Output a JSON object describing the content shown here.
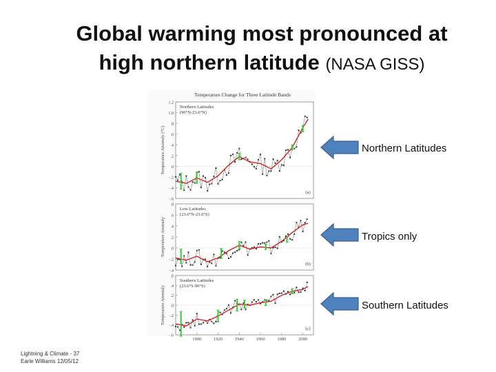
{
  "title": {
    "line1": "Global warming most pronounced at",
    "line2_main": "high northern latitude",
    "line2_source": "(NASA GISS)"
  },
  "footer": {
    "line1": "Lightning & Climate - 37",
    "line2": "Earle Williams 12/05/12"
  },
  "arrows": [
    {
      "label": "Northern Latitudes",
      "color": "#4f81bd"
    },
    {
      "label": "Tropics only",
      "color": "#4f81bd"
    },
    {
      "label": "Southern Latitudes",
      "color": "#4f81bd"
    }
  ],
  "chart_data": {
    "type": "line",
    "title": "Temperature Change for Three Latitude Bands",
    "x_ticks": [
      "1900",
      "1920",
      "1940",
      "1960",
      "1980",
      "2000"
    ],
    "xlim": [
      1880,
      2010
    ],
    "colors": {
      "annual": "#333333",
      "smooth": "#d62020",
      "error_bar": "#33cc33"
    },
    "panels": [
      {
        "name": "Northern Latitudes",
        "subtitle": "(90°N-23.6°N)",
        "ylabel": "Temperature Anomaly (°C)",
        "panel_label": "(a)",
        "ylim": [
          -0.6,
          1.2
        ],
        "y_ticks": [
          "1.2",
          "1.0",
          ".8",
          ".6",
          ".4",
          ".2",
          ".0",
          "-.2",
          "-.4",
          "-.6"
        ],
        "y_tick_values": [
          1.2,
          1.0,
          0.8,
          0.6,
          0.4,
          0.2,
          0.0,
          -0.2,
          -0.4,
          -0.6
        ],
        "smooth": {
          "x": [
            1880,
            1890,
            1900,
            1910,
            1920,
            1930,
            1940,
            1950,
            1960,
            1970,
            1980,
            1990,
            2000,
            2005
          ],
          "y": [
            -0.28,
            -0.32,
            -0.22,
            -0.3,
            -0.18,
            0.02,
            0.18,
            0.08,
            0.05,
            -0.05,
            0.12,
            0.35,
            0.72,
            0.88
          ]
        },
        "annual_amplitude": 0.18,
        "error_bars": [
          {
            "x": 1885,
            "y": -0.28,
            "half": 0.15
          },
          {
            "x": 1900,
            "y": -0.22,
            "half": 0.1
          },
          {
            "x": 1940,
            "y": 0.18,
            "half": 0.06
          },
          {
            "x": 1990,
            "y": 0.35,
            "half": 0.05
          },
          {
            "x": 2000,
            "y": 0.7,
            "half": 0.06
          }
        ]
      },
      {
        "name": "Low Latitudes",
        "subtitle": "(23.6°N-23.6°S)",
        "ylabel": "Temperature Anomaly",
        "panel_label": "(b)",
        "ylim": [
          -0.4,
          0.8
        ],
        "y_ticks": [
          ".8",
          ".6",
          ".4",
          ".2",
          ".0",
          "-.2",
          "-.4"
        ],
        "y_tick_values": [
          0.8,
          0.6,
          0.4,
          0.2,
          0.0,
          -0.2,
          -0.4
        ],
        "smooth": {
          "x": [
            1880,
            1890,
            1900,
            1910,
            1920,
            1930,
            1940,
            1950,
            1960,
            1970,
            1980,
            1990,
            2000,
            2005
          ],
          "y": [
            -0.18,
            -0.22,
            -0.15,
            -0.25,
            -0.18,
            -0.05,
            0.05,
            -0.02,
            0.02,
            0.0,
            0.12,
            0.28,
            0.42,
            0.45
          ]
        },
        "annual_amplitude": 0.14,
        "error_bars": [
          {
            "x": 1885,
            "y": -0.15,
            "half": 0.13
          },
          {
            "x": 1923,
            "y": -0.1,
            "half": 0.09
          },
          {
            "x": 1940,
            "y": 0.05,
            "half": 0.07
          },
          {
            "x": 1965,
            "y": 0.02,
            "half": 0.05
          },
          {
            "x": 1985,
            "y": 0.15,
            "half": 0.05
          }
        ]
      },
      {
        "name": "Southern Latitudes",
        "subtitle": "(23.6°S-90°S)",
        "ylabel": "Temperature Anomaly",
        "panel_label": "(c)",
        "ylim": [
          -0.6,
          0.6
        ],
        "y_ticks": [
          ".6",
          ".4",
          ".2",
          ".0",
          "-.2",
          "-.4",
          "-.6"
        ],
        "y_tick_values": [
          0.6,
          0.4,
          0.2,
          0.0,
          -0.2,
          -0.4,
          -0.6
        ],
        "smooth": {
          "x": [
            1880,
            1890,
            1900,
            1910,
            1920,
            1930,
            1940,
            1950,
            1960,
            1970,
            1980,
            1990,
            2000,
            2005
          ],
          "y": [
            -0.38,
            -0.42,
            -0.28,
            -0.32,
            -0.22,
            -0.1,
            0.02,
            0.0,
            0.05,
            0.08,
            0.2,
            0.28,
            0.32,
            0.38
          ]
        },
        "annual_amplitude": 0.12,
        "error_bars": [
          {
            "x": 1885,
            "y": -0.38,
            "half": 0.25
          },
          {
            "x": 1920,
            "y": -0.22,
            "half": 0.12
          },
          {
            "x": 1938,
            "y": 0.0,
            "half": 0.12
          },
          {
            "x": 1945,
            "y": 0.02,
            "half": 0.08
          },
          {
            "x": 1965,
            "y": 0.05,
            "half": 0.06
          },
          {
            "x": 1990,
            "y": 0.28,
            "half": 0.05
          }
        ]
      }
    ]
  }
}
